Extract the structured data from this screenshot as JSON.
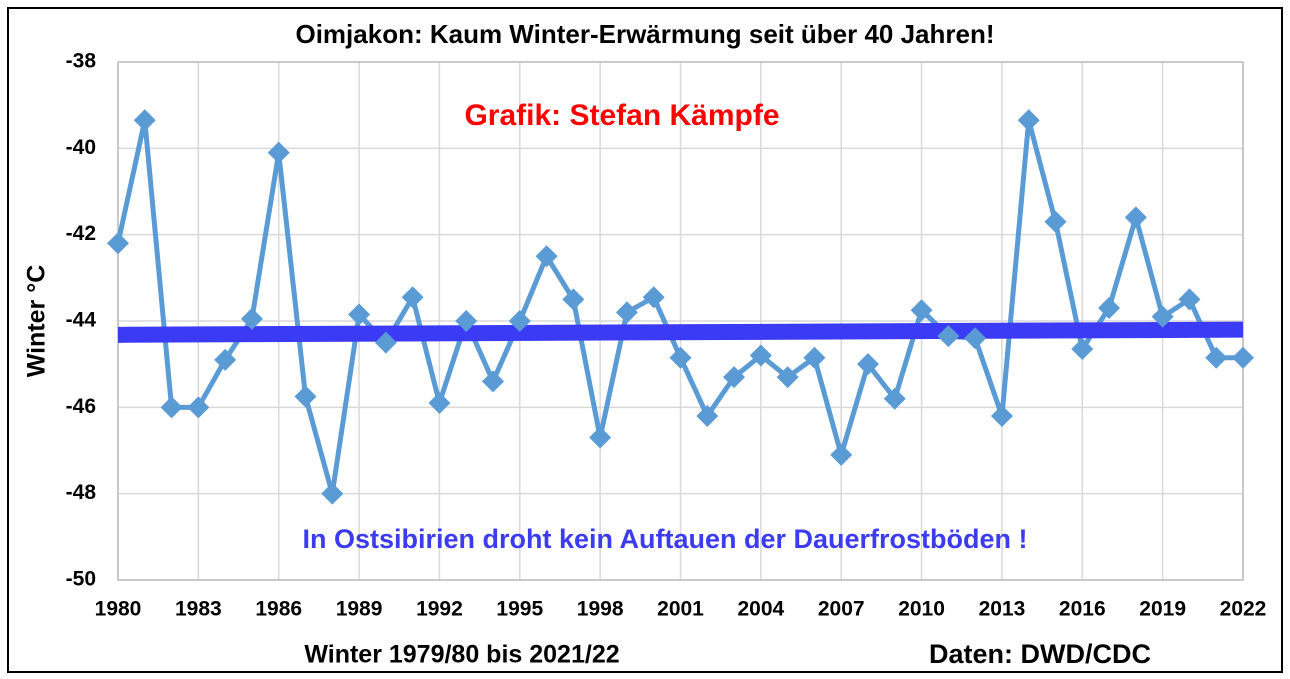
{
  "chart_data": {
    "type": "line",
    "title": "Oimjakon: Kaum Winter-Erwärmung seit über 40 Jahren!",
    "annotations": [
      "Grafik: Stefan Kämpfe",
      "In Ostsibirien droht kein Auftauen der Dauerfrostböden !"
    ],
    "annotation_colors": [
      "#ff0000",
      "#3b3bf0"
    ],
    "xlabel": "Winter 1979/80 bis 2021/22",
    "ylabel": "Winter °C",
    "source": "Daten: DWD/CDC",
    "x": [
      1980,
      1981,
      1982,
      1983,
      1984,
      1985,
      1986,
      1987,
      1988,
      1989,
      1990,
      1991,
      1992,
      1993,
      1994,
      1995,
      1996,
      1997,
      1998,
      1999,
      2000,
      2001,
      2002,
      2003,
      2004,
      2005,
      2006,
      2007,
      2008,
      2009,
      2010,
      2011,
      2012,
      2013,
      2014,
      2015,
      2016,
      2017,
      2018,
      2019,
      2020,
      2021,
      2022
    ],
    "values": [
      -42.2,
      -39.35,
      -46.0,
      -46.0,
      -44.9,
      -43.95,
      -40.1,
      -45.75,
      -48.0,
      -43.85,
      -44.5,
      -43.45,
      -45.9,
      -44.0,
      -45.4,
      -44.0,
      -42.5,
      -43.5,
      -46.7,
      -43.8,
      -43.45,
      -44.85,
      -46.2,
      -45.3,
      -44.8,
      -45.3,
      -44.85,
      -47.1,
      -45.0,
      -45.8,
      -43.75,
      -44.35,
      -44.4,
      -46.2,
      -39.35,
      -41.7,
      -44.65,
      -43.7,
      -41.6,
      -43.9,
      -43.5,
      -44.85,
      -44.85
    ],
    "color": "#5b9bd5",
    "trend_line": {
      "x": [
        1980,
        2022
      ],
      "values": [
        -44.32,
        -44.2
      ],
      "color": "#3b3bf5"
    },
    "xlim": [
      1980,
      2022
    ],
    "xticks": [
      1980,
      1983,
      1986,
      1989,
      1992,
      1995,
      1998,
      2001,
      2004,
      2007,
      2010,
      2013,
      2016,
      2019,
      2022
    ],
    "ylim": [
      -50,
      -38
    ],
    "yticks": [
      -50,
      -48,
      -46,
      -44,
      -42,
      -40,
      -38
    ],
    "grid": true
  }
}
